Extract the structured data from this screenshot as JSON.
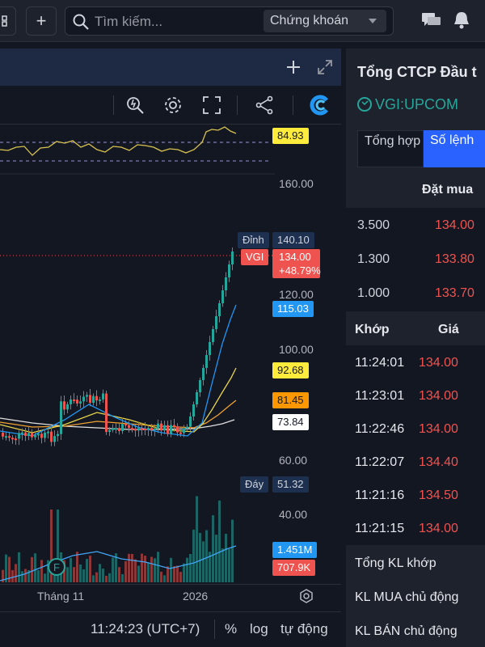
{
  "topbar": {
    "add_label": "+",
    "search_placeholder": "Tìm kiếm...",
    "market_select": "Chứng khoán"
  },
  "chart": {
    "rsi_value": "84.93",
    "price_axis": [
      "160.00",
      "120.00",
      "100.00",
      "60.00",
      "40.00"
    ],
    "peak_label": "Đỉnh",
    "peak_value": "140.10",
    "symbol_tag": "VGI",
    "last_price": "134.00",
    "change_pct": "+48.79%",
    "ma_values": [
      "115.03",
      "92.68",
      "81.45",
      "73.84"
    ],
    "trough_label": "Đáy",
    "trough_value": "51.32",
    "volume_values": [
      "1.451M",
      "707.9K"
    ],
    "time_axis": [
      "Tháng 11",
      "2026"
    ],
    "event_marker": "F",
    "clock": "11:24:23 (UTC+7)",
    "footer_percent": "%",
    "footer_log": "log",
    "footer_auto": "tự động",
    "colors": {
      "up": "#26a69a",
      "down": "#ef5350",
      "ma_blue": "#2196f3",
      "ma_yellow": "#ffeb3b",
      "ma_orange": "#ff9800",
      "ma_white": "#ffffff"
    }
  },
  "panel": {
    "company": "Tổng CTCP Đầu t",
    "ticker": "VGI:UPCOM",
    "tabs": [
      "Tổng hợp",
      "Số lệnh"
    ],
    "bid_header": "Đặt mua",
    "bids": [
      {
        "qty": "3.500",
        "price": "134.00"
      },
      {
        "qty": "1.300",
        "price": "133.80"
      },
      {
        "qty": "1.000",
        "price": "133.70"
      }
    ],
    "trades_headers": [
      "Khớp",
      "Giá"
    ],
    "trades": [
      {
        "time": "11:24:01",
        "price": "134.00"
      },
      {
        "time": "11:23:01",
        "price": "134.00"
      },
      {
        "time": "11:22:46",
        "price": "134.00"
      },
      {
        "time": "11:22:07",
        "price": "134.40"
      },
      {
        "time": "11:21:16",
        "price": "134.50"
      },
      {
        "time": "11:21:15",
        "price": "134.00"
      }
    ],
    "summary": [
      "Tổng KL khớp",
      "KL MUA chủ động",
      "KL BÁN chủ động"
    ]
  }
}
